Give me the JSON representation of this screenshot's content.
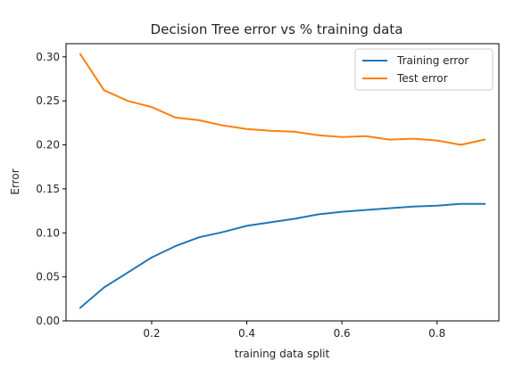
{
  "chart_data": {
    "type": "line",
    "title": "Decision Tree error vs % training data",
    "xlabel": "training data split",
    "ylabel": "Error",
    "xlim": [
      0.02,
      0.93
    ],
    "ylim": [
      0.0,
      0.315
    ],
    "xticks": [
      0.2,
      0.4,
      0.6,
      0.8
    ],
    "xtick_labels": [
      "0.2",
      "0.4",
      "0.6",
      "0.8"
    ],
    "yticks": [
      0.0,
      0.05,
      0.1,
      0.15,
      0.2,
      0.25,
      0.3
    ],
    "ytick_labels": [
      "0.00",
      "0.05",
      "0.10",
      "0.15",
      "0.20",
      "0.25",
      "0.30"
    ],
    "grid": false,
    "legend_position": "top-right",
    "x": [
      0.05,
      0.1,
      0.15,
      0.2,
      0.25,
      0.3,
      0.35,
      0.4,
      0.45,
      0.5,
      0.55,
      0.6,
      0.65,
      0.7,
      0.75,
      0.8,
      0.85,
      0.9
    ],
    "series": [
      {
        "name": "Training error",
        "color": "#1f77b4",
        "values": [
          0.015,
          0.038,
          0.055,
          0.072,
          0.085,
          0.095,
          0.101,
          0.108,
          0.112,
          0.116,
          0.121,
          0.124,
          0.126,
          0.128,
          0.13,
          0.131,
          0.133,
          0.133
        ]
      },
      {
        "name": "Test error",
        "color": "#ff7f0e",
        "values": [
          0.303,
          0.262,
          0.25,
          0.243,
          0.231,
          0.228,
          0.222,
          0.218,
          0.216,
          0.215,
          0.211,
          0.209,
          0.21,
          0.206,
          0.207,
          0.205,
          0.2,
          0.206
        ]
      }
    ]
  }
}
